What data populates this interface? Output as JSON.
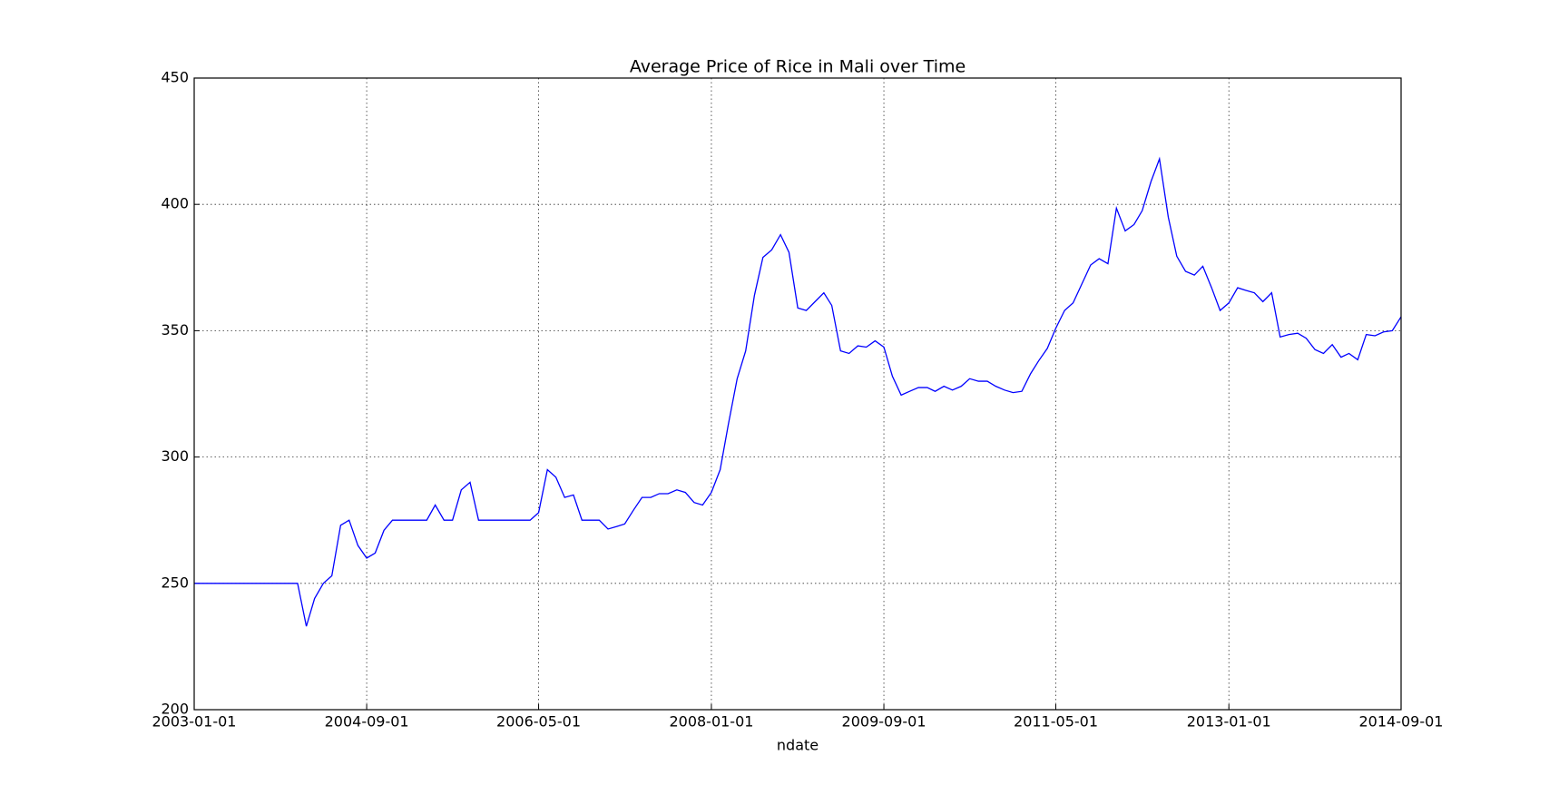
{
  "chart_data": {
    "type": "line",
    "title": "Average Price of Rice in Mali over Time",
    "x_label": "ndate",
    "x": [
      "2003-01-01",
      "2003-02-01",
      "2003-03-01",
      "2003-04-01",
      "2003-05-01",
      "2003-06-01",
      "2003-07-01",
      "2003-08-01",
      "2003-09-01",
      "2003-10-01",
      "2003-11-01",
      "2003-12-01",
      "2004-01-01",
      "2004-02-01",
      "2004-03-01",
      "2004-04-01",
      "2004-05-01",
      "2004-06-01",
      "2004-07-01",
      "2004-08-01",
      "2004-09-01",
      "2004-10-01",
      "2004-11-01",
      "2004-12-01",
      "2005-01-01",
      "2005-02-01",
      "2005-03-01",
      "2005-04-01",
      "2005-05-01",
      "2005-06-01",
      "2005-07-01",
      "2005-08-01",
      "2005-09-01",
      "2005-10-01",
      "2005-11-01",
      "2005-12-01",
      "2006-01-01",
      "2006-02-01",
      "2006-03-01",
      "2006-04-01",
      "2006-05-01",
      "2006-06-01",
      "2006-07-01",
      "2006-08-01",
      "2006-09-01",
      "2006-10-01",
      "2006-11-01",
      "2006-12-01",
      "2007-01-01",
      "2007-02-01",
      "2007-03-01",
      "2007-04-01",
      "2007-05-01",
      "2007-06-01",
      "2007-07-01",
      "2007-08-01",
      "2007-09-01",
      "2007-10-01",
      "2007-11-01",
      "2007-12-01",
      "2008-01-01",
      "2008-02-01",
      "2008-03-01",
      "2008-04-01",
      "2008-05-01",
      "2008-06-01",
      "2008-07-01",
      "2008-08-01",
      "2008-09-01",
      "2008-10-01",
      "2008-11-01",
      "2008-12-01",
      "2009-01-01",
      "2009-02-01",
      "2009-03-01",
      "2009-04-01",
      "2009-05-01",
      "2009-06-01",
      "2009-07-01",
      "2009-08-01",
      "2009-09-01",
      "2009-10-01",
      "2009-11-01",
      "2009-12-01",
      "2010-01-01",
      "2010-02-01",
      "2010-03-01",
      "2010-04-01",
      "2010-05-01",
      "2010-06-01",
      "2010-07-01",
      "2010-08-01",
      "2010-09-01",
      "2010-10-01",
      "2010-11-01",
      "2010-12-01",
      "2011-01-01",
      "2011-02-01",
      "2011-03-01",
      "2011-04-01",
      "2011-05-01",
      "2011-06-01",
      "2011-07-01",
      "2011-08-01",
      "2011-09-01",
      "2011-10-01",
      "2011-11-01",
      "2011-12-01",
      "2012-01-01",
      "2012-02-01",
      "2012-03-01",
      "2012-04-01",
      "2012-05-01",
      "2012-06-01",
      "2012-07-01",
      "2012-08-01",
      "2012-09-01",
      "2012-10-01",
      "2012-11-01",
      "2012-12-01",
      "2013-01-01",
      "2013-02-01",
      "2013-03-01",
      "2013-04-01",
      "2013-05-01",
      "2013-06-01",
      "2013-07-01",
      "2013-08-01",
      "2013-09-01",
      "2013-10-01",
      "2013-11-01",
      "2013-12-01",
      "2014-01-01",
      "2014-02-01",
      "2014-03-01",
      "2014-04-01",
      "2014-05-01",
      "2014-06-01",
      "2014-07-01",
      "2014-08-01",
      "2014-09-01"
    ],
    "series": [
      {
        "color": "#0000ff",
        "values": [
          250,
          250,
          250,
          250,
          250,
          250,
          250,
          250,
          250,
          250,
          250,
          250,
          250,
          233,
          244,
          250,
          253,
          273,
          275,
          265,
          260,
          262,
          271,
          275,
          275,
          275,
          275,
          275,
          281,
          275,
          275,
          287,
          290,
          275,
          275,
          275,
          275,
          275,
          275,
          275,
          278,
          295,
          292,
          284,
          285,
          275,
          275,
          275,
          271.5,
          272.5,
          273.5,
          279,
          284,
          284,
          285.5,
          285.5,
          287,
          286,
          282,
          281,
          286,
          295,
          313,
          331,
          342,
          364,
          379,
          382,
          388,
          381,
          359,
          358,
          361.5,
          365,
          360,
          342,
          341,
          344,
          343.5,
          346,
          343.5,
          332,
          324.5,
          326,
          327.5,
          327.5,
          326,
          328,
          326.5,
          328,
          331,
          330,
          330,
          328,
          326.5,
          325.5,
          326,
          333,
          338,
          343,
          351,
          358,
          361,
          368.5,
          376,
          378.5,
          376.5,
          398.5,
          389.5,
          392,
          397.5,
          409,
          418,
          395,
          379.5,
          373.5,
          372,
          375.5,
          367,
          358,
          361,
          367,
          366,
          365,
          361.5,
          365,
          347.5,
          348.5,
          349,
          347,
          342.5,
          341,
          344.5,
          339.5,
          341,
          338.5,
          348.5,
          348,
          349.5,
          350,
          355.5
        ]
      }
    ],
    "xlim": [
      "2003-01-01",
      "2014-09-01"
    ],
    "xticks": [
      "2003-01-01",
      "2004-09-01",
      "2006-05-01",
      "2008-01-01",
      "2009-09-01",
      "2011-05-01",
      "2013-01-01",
      "2014-09-01"
    ],
    "ylim": [
      200,
      450
    ],
    "yticks": [
      200,
      250,
      300,
      350,
      400,
      450
    ],
    "grid": true
  }
}
